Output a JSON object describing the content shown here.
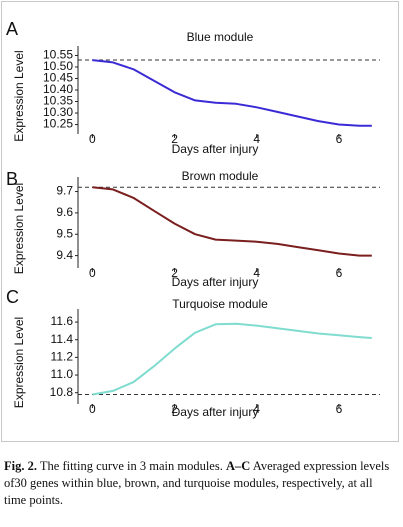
{
  "chart_data": [
    {
      "type": "line",
      "panel_label": "A",
      "title": "Blue module",
      "y_label": "Expression Level",
      "x_label": "Days after injury",
      "x": [
        0,
        0.5,
        1,
        1.5,
        2,
        2.5,
        3,
        3.5,
        4,
        4.5,
        5,
        5.5,
        6,
        6.5,
        6.8
      ],
      "values": [
        10.53,
        10.52,
        10.49,
        10.44,
        10.39,
        10.355,
        10.345,
        10.34,
        10.325,
        10.305,
        10.285,
        10.265,
        10.25,
        10.245,
        10.245
      ],
      "color": "#3b2bd6",
      "reference_line": 10.53,
      "xlim": [
        -0.35,
        7
      ],
      "xticks": [
        0,
        2,
        4,
        6
      ],
      "ylim": [
        10.235,
        10.565
      ],
      "yticks": [
        10.25,
        {
          "value": 10.3,
          "label": "10.30"
        },
        10.35,
        {
          "value": 10.4,
          "label": "10.40"
        },
        10.45,
        {
          "value": 10.5,
          "label": "10.50"
        },
        10.55
      ]
    },
    {
      "type": "line",
      "panel_label": "B",
      "title": "Brown module",
      "y_label": "Expression Level",
      "x_label": "Days after injury",
      "x": [
        0,
        0.5,
        1,
        1.5,
        2,
        2.5,
        3,
        3.5,
        4,
        4.5,
        5,
        5.5,
        6,
        6.5,
        6.8
      ],
      "values": [
        9.72,
        9.71,
        9.67,
        9.61,
        9.55,
        9.5,
        9.475,
        9.47,
        9.465,
        9.455,
        9.44,
        9.425,
        9.41,
        9.4,
        9.4
      ],
      "color": "#7a1e1e",
      "reference_line": 9.72,
      "xlim": [
        -0.35,
        7
      ],
      "xticks": [
        0,
        2,
        4,
        6
      ],
      "ylim": [
        9.37,
        9.74
      ],
      "yticks": [
        9.4,
        9.5,
        9.6,
        9.7
      ]
    },
    {
      "type": "line",
      "panel_label": "C",
      "title": "Turquoise module",
      "y_label": "Expression Level",
      "x_label": "Days after injury",
      "x": [
        0,
        0.5,
        1,
        1.5,
        2,
        2.5,
        3,
        3.5,
        4,
        4.5,
        5,
        5.5,
        6,
        6.5,
        6.8
      ],
      "values": [
        10.78,
        10.82,
        10.92,
        11.1,
        11.3,
        11.48,
        11.575,
        11.58,
        11.56,
        11.53,
        11.5,
        11.47,
        11.45,
        11.43,
        11.42
      ],
      "color": "#7fdccf",
      "reference_line": 10.78,
      "xlim": [
        -0.35,
        7
      ],
      "xticks": [
        0,
        2,
        4,
        6
      ],
      "ylim": [
        10.74,
        11.68
      ],
      "yticks": [
        10.8,
        {
          "value": 11,
          "label": "11.0"
        },
        11.2,
        11.4,
        11.6
      ]
    }
  ],
  "caption": {
    "label": "Fig. 2.",
    "text_1": "The fitting curve in 3 main modules.",
    "bold_2": "A–C",
    "text_2": "Averaged expression levels of30 genes within blue, brown, and turquoise modules, respectively, at all time points."
  }
}
